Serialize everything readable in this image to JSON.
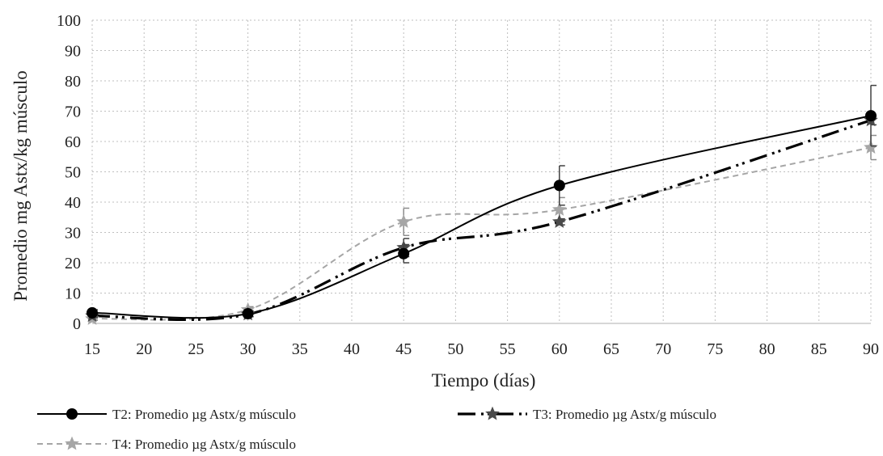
{
  "chart_data": {
    "type": "line",
    "xlabel": "Tiempo (días)",
    "ylabel": "Promedio mg Astx/kg músculo",
    "xlim": [
      15,
      90
    ],
    "ylim": [
      0,
      100
    ],
    "x_ticks": [
      15,
      20,
      25,
      30,
      35,
      40,
      45,
      50,
      55,
      60,
      65,
      70,
      75,
      80,
      85,
      90
    ],
    "y_ticks": [
      0,
      10,
      20,
      30,
      40,
      50,
      60,
      70,
      80,
      90,
      100
    ],
    "grid": "dotted vertical and horizontal",
    "legend_position": "bottom",
    "series": [
      {
        "name": "T2: Promedio µg Astx/g músculo",
        "color": "#000000",
        "line_style": "solid",
        "marker": "circle",
        "x": [
          15,
          30,
          45,
          60,
          90
        ],
        "y": [
          3.5,
          3.2,
          23.0,
          45.5,
          68.5
        ],
        "error": [
          1.0,
          1.0,
          3.0,
          6.5,
          10.0
        ]
      },
      {
        "name": "T3: Promedio µg Astx/g músculo",
        "color": "#000000",
        "line_style": "dash-dot-dot",
        "marker": "star",
        "x": [
          15,
          30,
          45,
          60,
          90
        ],
        "y": [
          2.5,
          3.0,
          25.0,
          33.5,
          67.0
        ],
        "error": [
          0.5,
          0.8,
          3.0,
          1.0,
          1.5
        ]
      },
      {
        "name": "T4: Promedio µg Astx/g músculo",
        "color": "#a6a6a6",
        "line_style": "dashed",
        "marker": "star",
        "x": [
          15,
          30,
          45,
          60,
          90
        ],
        "y": [
          1.5,
          4.5,
          33.5,
          37.5,
          58.0
        ],
        "error": [
          0.5,
          1.0,
          4.5,
          4.0,
          4.0
        ]
      }
    ]
  }
}
